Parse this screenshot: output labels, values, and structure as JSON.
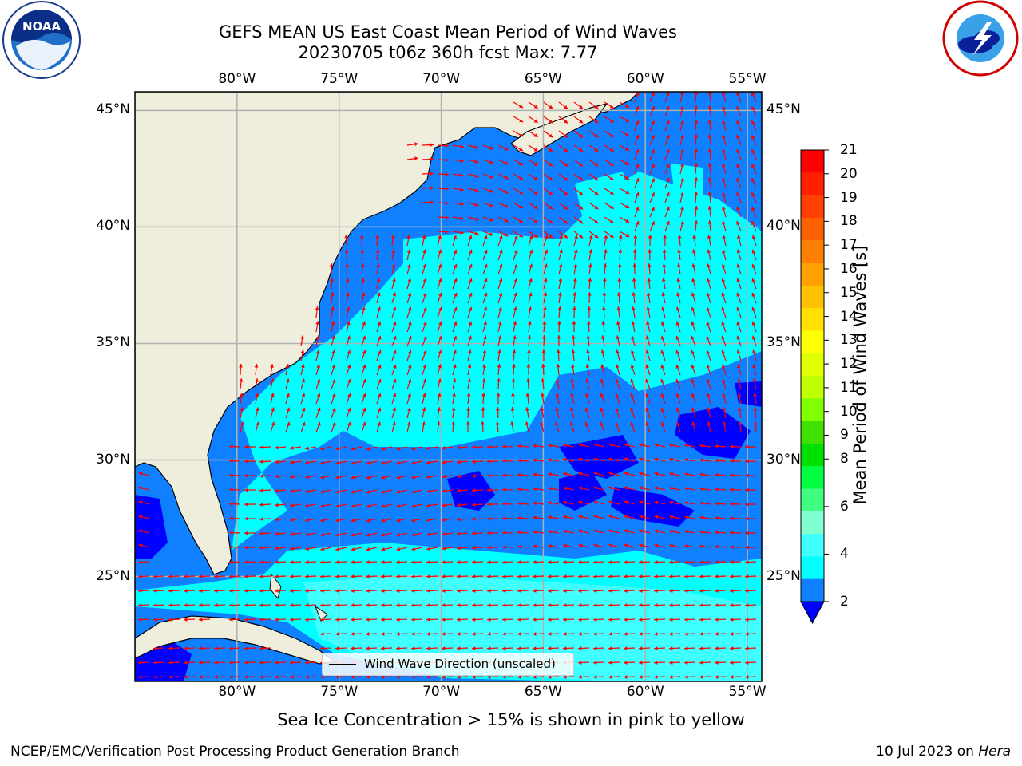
{
  "title": {
    "line1": "GEFS MEAN US East Coast Mean Period of Wind Waves",
    "line2": "20230705 t06z 360h fcst   Max: 7.77"
  },
  "logos": {
    "left": {
      "icon": "noaa-logo-icon",
      "text": "NOAA"
    },
    "right": {
      "icon": "national-weather-service-logo-icon"
    }
  },
  "map": {
    "lon_ticks": [
      "80°W",
      "75°W",
      "70°W",
      "65°W",
      "60°W",
      "55°W"
    ],
    "lat_ticks": [
      "45°N",
      "40°N",
      "35°N",
      "30°N",
      "25°N"
    ],
    "lon_values": [
      -80,
      -75,
      -70,
      -65,
      -60,
      -55
    ],
    "lat_values": [
      45,
      40,
      35,
      30,
      25
    ],
    "lon_range": [
      -85,
      -54.3
    ],
    "lat_range": [
      20.5,
      45.8
    ],
    "legend_label": "Wind Wave Direction (unscaled)",
    "colors": {
      "land": "#efeedc",
      "band_below_2": "#0000ff",
      "band_2_4": "#0f80ff",
      "band_4_6": "#00ffff",
      "band_6_8": "#40ffff",
      "arrows": "#ff0000",
      "grid": "#b0b0b0"
    }
  },
  "colorbar": {
    "label": "Mean Period of Wind Waves [s]",
    "ticks": [
      "21",
      "20",
      "19",
      "18",
      "17",
      "16",
      "15",
      "14",
      "13",
      "12",
      "11",
      "10",
      "9",
      "8",
      "6",
      "4",
      "2"
    ],
    "colors": [
      "#ff0000",
      "#ff2000",
      "#ff4000",
      "#ff6000",
      "#ff8000",
      "#ffa000",
      "#ffc000",
      "#ffe000",
      "#ffff00",
      "#e0ff00",
      "#c0ff00",
      "#80ff00",
      "#40e000",
      "#00e000",
      "#00ff40",
      "#40ff80",
      "#80ffd0",
      "#40ffff",
      "#00ffff",
      "#0f80ff"
    ],
    "under_color": "#0000ff"
  },
  "note": "Sea Ice Concentration > 15% is shown in pink to yellow",
  "footer": {
    "left": "NCEP/EMC/Verification Post Processing Product Generation Branch",
    "right_date": "10 Jul 2023 on ",
    "right_machine": "Hera"
  }
}
